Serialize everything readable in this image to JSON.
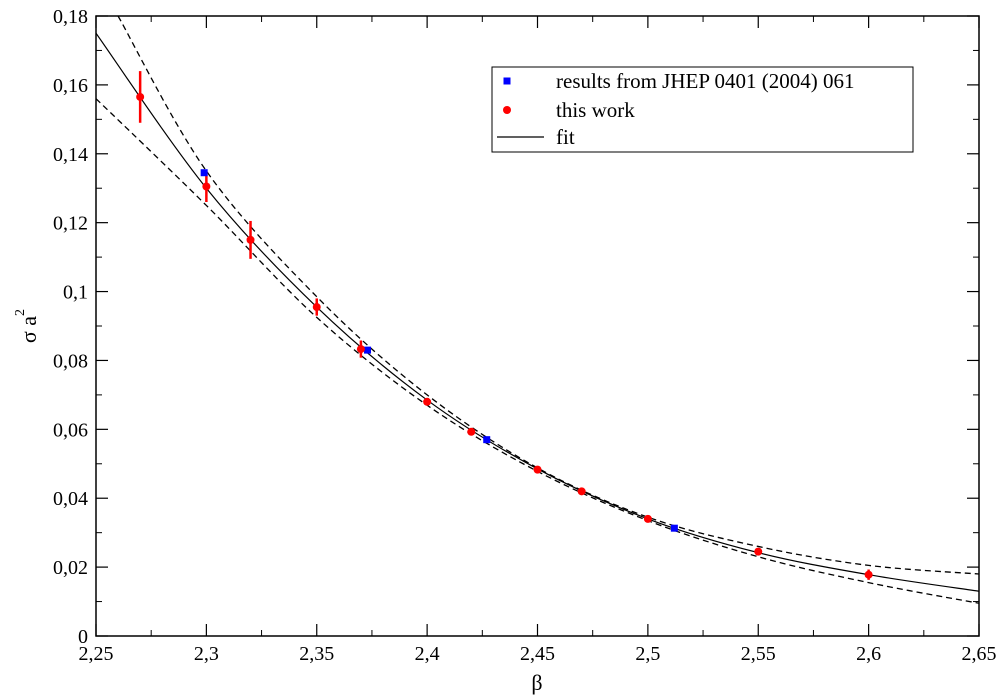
{
  "chart_data": {
    "type": "scatter",
    "title": "",
    "xlabel": "β",
    "ylabel_main": "σ a",
    "ylabel_sup": "2",
    "xlim": [
      2.25,
      2.65
    ],
    "ylim": [
      0,
      0.18
    ],
    "x_major_ticks": [
      2.25,
      2.3,
      2.35,
      2.4,
      2.45,
      2.5,
      2.55,
      2.6,
      2.65
    ],
    "x_tick_labels": [
      "2,25",
      "2,3",
      "2,35",
      "2,4",
      "2,45",
      "2,5",
      "2,55",
      "2,6",
      "2,65"
    ],
    "y_major_ticks": [
      0,
      0.02,
      0.04,
      0.06,
      0.08,
      0.1,
      0.12,
      0.14,
      0.16,
      0.18
    ],
    "y_tick_labels": [
      "0",
      "0,02",
      "0,04",
      "0,06",
      "0,08",
      "0,1",
      "0,12",
      "0,14",
      "0,16",
      "0,18"
    ],
    "grid": false,
    "legend_position": "top-right",
    "series": [
      {
        "name": "results from JHEP 0401 (2004) 061",
        "marker": "square",
        "color": "#0000ff",
        "points": [
          {
            "x": 2.299,
            "y": 0.1345
          },
          {
            "x": 2.373,
            "y": 0.083
          },
          {
            "x": 2.427,
            "y": 0.057
          },
          {
            "x": 2.512,
            "y": 0.0313
          }
        ]
      },
      {
        "name": "this work",
        "marker": "circle",
        "color": "#ff0000",
        "points": [
          {
            "x": 2.27,
            "y": 0.1565,
            "err": 0.0075
          },
          {
            "x": 2.3,
            "y": 0.1305,
            "err": 0.0045
          },
          {
            "x": 2.32,
            "y": 0.115,
            "err": 0.0055
          },
          {
            "x": 2.35,
            "y": 0.0955,
            "err": 0.0025
          },
          {
            "x": 2.37,
            "y": 0.0833,
            "err": 0.0025
          },
          {
            "x": 2.4,
            "y": 0.068,
            "err": 0.0005
          },
          {
            "x": 2.42,
            "y": 0.0593,
            "err": 0.0005
          },
          {
            "x": 2.45,
            "y": 0.0483,
            "err": 0.0005
          },
          {
            "x": 2.47,
            "y": 0.042,
            "err": 0.0005
          },
          {
            "x": 2.5,
            "y": 0.034,
            "err": 0.0005
          },
          {
            "x": 2.55,
            "y": 0.0245,
            "err": 0.0008
          },
          {
            "x": 2.6,
            "y": 0.0178,
            "err": 0.0015
          }
        ]
      },
      {
        "name": "fit",
        "type": "line",
        "color": "#000000",
        "dash": "solid",
        "points": [
          {
            "x": 2.25,
            "y": 0.175
          },
          {
            "x": 2.3,
            "y": 0.13
          },
          {
            "x": 2.35,
            "y": 0.0955
          },
          {
            "x": 2.4,
            "y": 0.0685
          },
          {
            "x": 2.45,
            "y": 0.0485
          },
          {
            "x": 2.5,
            "y": 0.034
          },
          {
            "x": 2.55,
            "y": 0.0242
          },
          {
            "x": 2.6,
            "y": 0.0178
          },
          {
            "x": 2.65,
            "y": 0.013
          }
        ]
      },
      {
        "type": "line",
        "color": "#000000",
        "dash": "dashed",
        "points": [
          {
            "x": 2.26,
            "y": 0.18
          },
          {
            "x": 2.3,
            "y": 0.135
          },
          {
            "x": 2.35,
            "y": 0.0985
          },
          {
            "x": 2.4,
            "y": 0.07
          },
          {
            "x": 2.45,
            "y": 0.0488
          },
          {
            "x": 2.5,
            "y": 0.0345
          },
          {
            "x": 2.55,
            "y": 0.026
          },
          {
            "x": 2.6,
            "y": 0.0205
          },
          {
            "x": 2.65,
            "y": 0.018
          }
        ]
      },
      {
        "type": "line",
        "color": "#000000",
        "dash": "dashed",
        "points": [
          {
            "x": 2.25,
            "y": 0.156
          },
          {
            "x": 2.3,
            "y": 0.125
          },
          {
            "x": 2.35,
            "y": 0.0925
          },
          {
            "x": 2.4,
            "y": 0.067
          },
          {
            "x": 2.45,
            "y": 0.0478
          },
          {
            "x": 2.5,
            "y": 0.0335
          },
          {
            "x": 2.55,
            "y": 0.023
          },
          {
            "x": 2.6,
            "y": 0.0155
          },
          {
            "x": 2.65,
            "y": 0.0095
          }
        ]
      }
    ]
  }
}
